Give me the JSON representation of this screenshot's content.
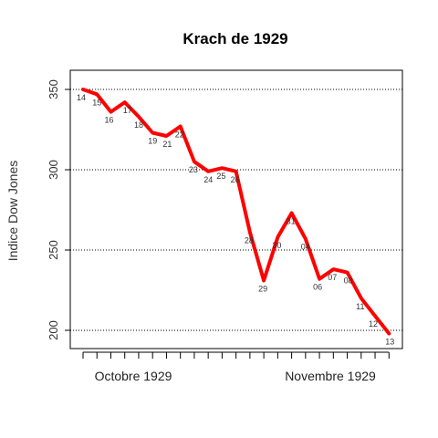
{
  "chart_data": {
    "type": "line",
    "title": "Krach de 1929",
    "xlabel": "",
    "ylabel": "Indice Dow Jones",
    "ylim": [
      189,
      416
    ],
    "yticks": [
      200,
      250,
      300,
      350
    ],
    "grid": "horizontal dotted at y ticks",
    "line_color": "#ff0000",
    "month_labels": [
      "Octobre 1929",
      "Novembre 1929"
    ],
    "points": [
      {
        "day": "14",
        "value": 350
      },
      {
        "day": "15",
        "value": 347
      },
      {
        "day": "16",
        "value": 336
      },
      {
        "day": "17",
        "value": 342
      },
      {
        "day": "18",
        "value": 333
      },
      {
        "day": "19",
        "value": 323
      },
      {
        "day": "21",
        "value": 321
      },
      {
        "day": "22",
        "value": 327
      },
      {
        "day": "23",
        "value": 305
      },
      {
        "day": "24",
        "value": 299
      },
      {
        "day": "25",
        "value": 301
      },
      {
        "day": "26",
        "value": 299
      },
      {
        "day": "28",
        "value": 261
      },
      {
        "day": "29",
        "value": 231
      },
      {
        "day": "30",
        "value": 258
      },
      {
        "day": "31",
        "value": 273
      },
      {
        "day": "04",
        "value": 257
      },
      {
        "day": "06",
        "value": 232
      },
      {
        "day": "07",
        "value": 238
      },
      {
        "day": "08",
        "value": 236
      },
      {
        "day": "11",
        "value": 220
      },
      {
        "day": "12",
        "value": 209
      },
      {
        "day": "13",
        "value": 198
      }
    ]
  }
}
